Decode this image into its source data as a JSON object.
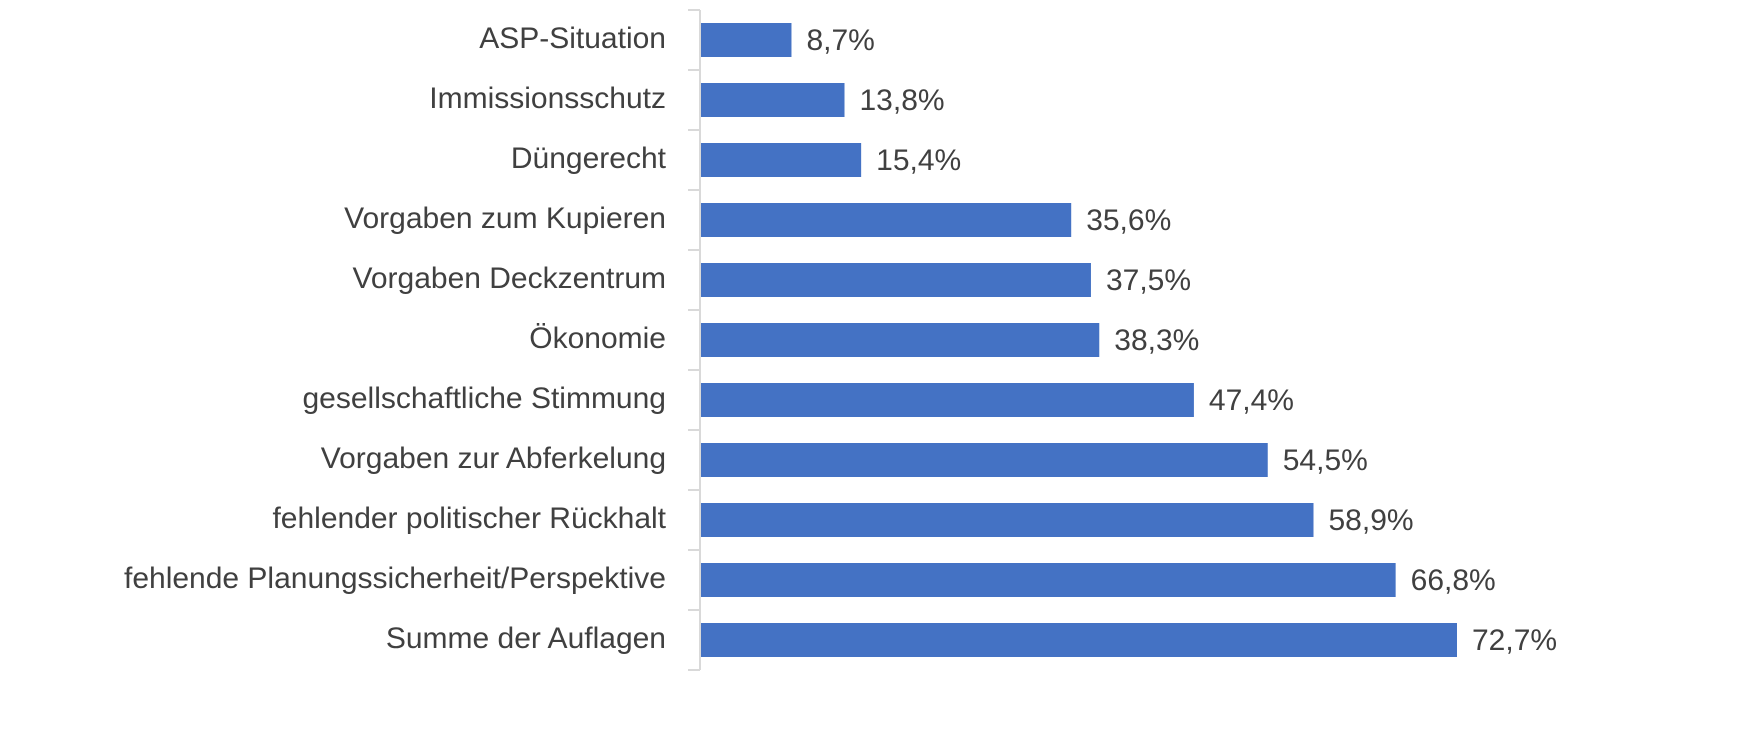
{
  "chart_data": {
    "type": "barh",
    "categories": [
      "ASP-Situation",
      "Immissionsschutz",
      "Düngerecht",
      "Vorgaben zum Kupieren",
      "Vorgaben Deckzentrum",
      "Ökonomie",
      "gesellschaftliche Stimmung",
      "Vorgaben zur Abferkelung",
      "fehlender politischer Rückhalt",
      "fehlende Planungssicherheit/Perspektive",
      "Summe der Auflagen"
    ],
    "values": [
      8.7,
      13.8,
      15.4,
      35.6,
      37.5,
      38.3,
      47.4,
      54.5,
      58.9,
      66.8,
      72.7
    ],
    "value_labels": [
      "8,7%",
      "13,8%",
      "15,4%",
      "35,6%",
      "37,5%",
      "38,3%",
      "47,4%",
      "54,5%",
      "58,9%",
      "66,8%",
      "72,7%"
    ],
    "color": "#4472c4"
  }
}
